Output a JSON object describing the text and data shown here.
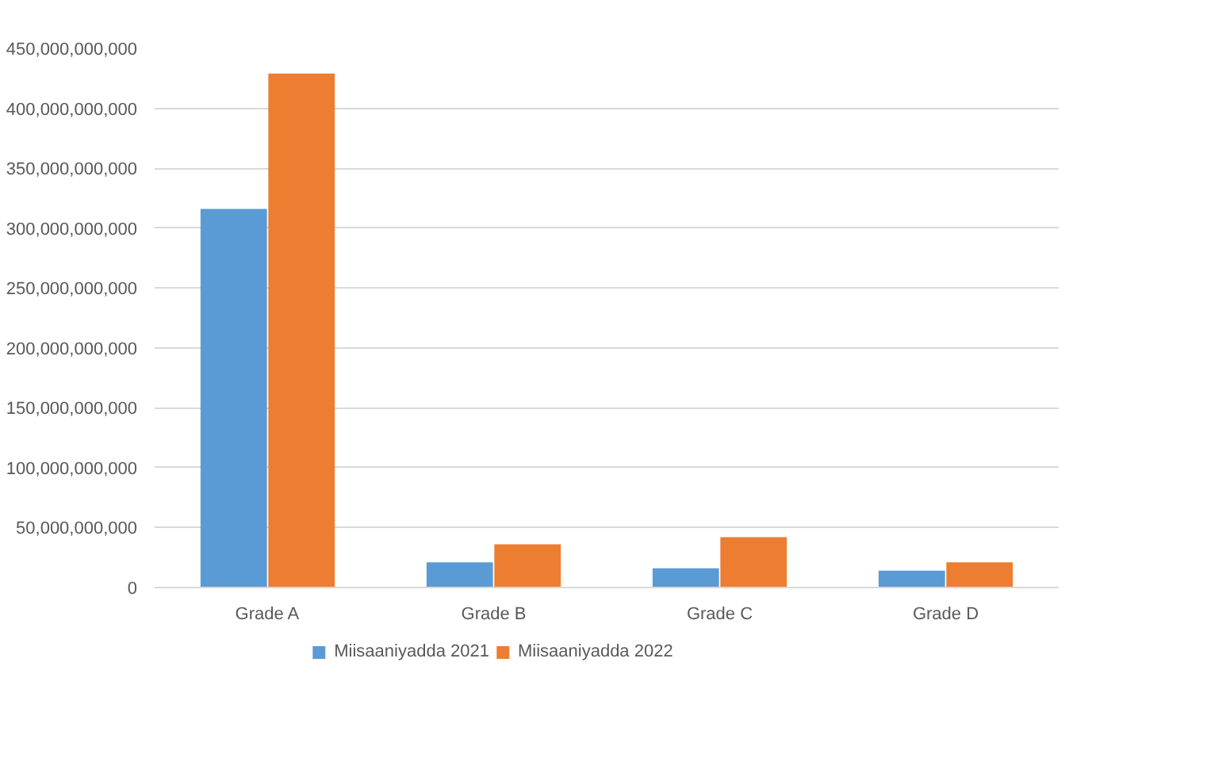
{
  "chart_data": {
    "type": "bar",
    "categories": [
      "Grade A",
      "Grade B",
      "Grade C",
      "Grade D"
    ],
    "series": [
      {
        "name": "Miisaaniyadda 2021",
        "color": "#5b9bd5",
        "values": [
          316000000000,
          21000000000,
          16000000000,
          14000000000
        ]
      },
      {
        "name": "Miisaaniyadda 2022",
        "color": "#ed7d31",
        "values": [
          429000000000,
          36000000000,
          42000000000,
          21000000000
        ]
      }
    ],
    "ylim": [
      0,
      450000000000
    ],
    "yticks": [
      {
        "value": 0,
        "label": "0"
      },
      {
        "value": 50000000000,
        "label": "50,000,000,000"
      },
      {
        "value": 100000000000,
        "label": "100,000,000,000"
      },
      {
        "value": 150000000000,
        "label": "150,000,000,000"
      },
      {
        "value": 200000000000,
        "label": "200,000,000,000"
      },
      {
        "value": 250000000000,
        "label": "250,000,000,000"
      },
      {
        "value": 300000000000,
        "label": "300,000,000,000"
      },
      {
        "value": 350000000000,
        "label": "350,000,000,000"
      },
      {
        "value": 400000000000,
        "label": "400,000,000,000"
      },
      {
        "value": 450000000000,
        "label": "450,000,000,000"
      }
    ],
    "grid": "y",
    "legend": "bottom"
  }
}
